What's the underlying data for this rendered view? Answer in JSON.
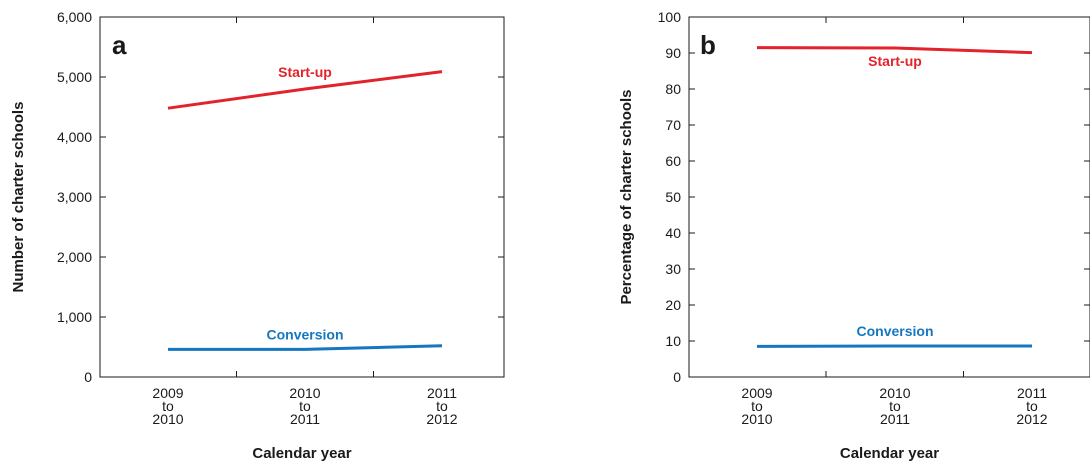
{
  "colors": {
    "startup": "#e3222b",
    "conversion": "#1577c0",
    "axis": "#1a1a1a"
  },
  "chart_data": [
    {
      "type": "line",
      "panel_letter": "a",
      "xlabel": "Calendar year",
      "ylabel": "Number of charter schools",
      "categories": [
        [
          "2009",
          "to",
          "2010"
        ],
        [
          "2010",
          "to",
          "2011"
        ],
        [
          "2011",
          "to",
          "2012"
        ]
      ],
      "ylim": [
        0,
        6000
      ],
      "yticks": [
        0,
        1000,
        2000,
        3000,
        4000,
        5000,
        6000
      ],
      "ytick_labels": [
        "0",
        "1,000",
        "2,000",
        "3,000",
        "4,000",
        "5,000",
        "6,000"
      ],
      "series": [
        {
          "name": "Start-up",
          "color_key": "startup",
          "values": [
            4480,
            4800,
            5090
          ]
        },
        {
          "name": "Conversion",
          "color_key": "conversion",
          "values": [
            460,
            460,
            520
          ]
        }
      ]
    },
    {
      "type": "line",
      "panel_letter": "b",
      "xlabel": "Calendar year",
      "ylabel": "Percentage of charter schools",
      "categories": [
        [
          "2009",
          "to",
          "2010"
        ],
        [
          "2010",
          "to",
          "2011"
        ],
        [
          "2011",
          "to",
          "2012"
        ]
      ],
      "ylim": [
        0,
        100
      ],
      "yticks": [
        0,
        10,
        20,
        30,
        40,
        50,
        60,
        70,
        80,
        90,
        100
      ],
      "ytick_labels": [
        "0",
        "10",
        "20",
        "30",
        "40",
        "50",
        "60",
        "70",
        "80",
        "90",
        "100"
      ],
      "series": [
        {
          "name": "Start-up",
          "color_key": "startup",
          "values": [
            91.5,
            91.4,
            90.1
          ]
        },
        {
          "name": "Conversion",
          "color_key": "conversion",
          "values": [
            8.5,
            8.6,
            8.6
          ]
        }
      ]
    }
  ]
}
